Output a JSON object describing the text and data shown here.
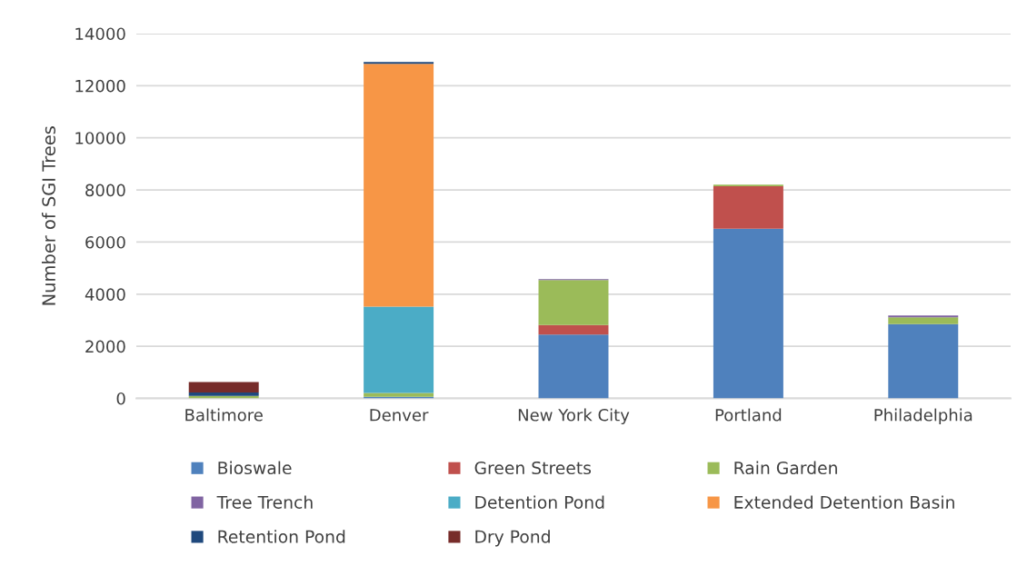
{
  "chart_data": {
    "type": "bar",
    "stacked": true,
    "ylabel": "Number of SGI Trees",
    "categories": [
      "Baltimore",
      "Denver",
      "New York City",
      "Portland",
      "Philadelphia"
    ],
    "series": [
      {
        "name": "Bioswale",
        "color": "#4f81bd",
        "values": [
          null,
          60,
          2450,
          6510,
          2850
        ]
      },
      {
        "name": "Green Streets",
        "color": "#c0504d",
        "values": [
          null,
          null,
          370,
          1630,
          null
        ]
      },
      {
        "name": "Rain Garden",
        "color": "#9bbb59",
        "values": [
          100,
          150,
          1720,
          60,
          260
        ]
      },
      {
        "name": "Tree Trench",
        "color": "#8064a2",
        "values": [
          null,
          null,
          40,
          null,
          70
        ]
      },
      {
        "name": "Detention Pond",
        "color": "#4bacc6",
        "values": [
          null,
          3310,
          null,
          null,
          null
        ]
      },
      {
        "name": "Extended Detention Basin",
        "color": "#f79646",
        "values": [
          null,
          9320,
          null,
          null,
          null
        ]
      },
      {
        "name": "Retention Pond",
        "color": "#1f497d",
        "values": [
          130,
          70,
          null,
          null,
          null
        ]
      },
      {
        "name": "Dry Pond",
        "color": "#772c2a",
        "values": [
          400,
          null,
          null,
          null,
          null
        ]
      }
    ],
    "ylim": [
      0,
      14000
    ],
    "yticks": [
      0,
      2000,
      4000,
      6000,
      8000,
      10000,
      12000,
      14000
    ],
    "grid": "y",
    "legend": "bottom"
  }
}
